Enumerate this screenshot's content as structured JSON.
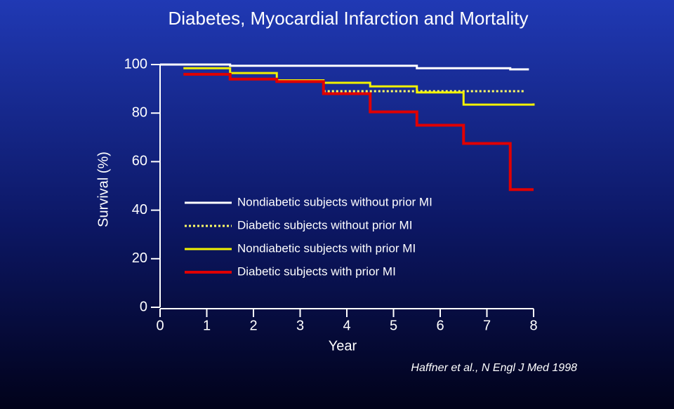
{
  "chart_data": {
    "type": "step",
    "title": "Diabetes, Myocardial Infarction and Mortality",
    "xlabel": "Year",
    "ylabel": "Survival (%)",
    "xlim": [
      0,
      8
    ],
    "ylim": [
      0,
      100
    ],
    "xticks": [
      0,
      1,
      2,
      3,
      4,
      5,
      6,
      7,
      8
    ],
    "yticks": [
      0,
      20,
      40,
      60,
      80,
      100
    ],
    "series": [
      {
        "name": "Nondiabetic subjects without prior MI",
        "color": "#ffffff",
        "style": "solid",
        "x": [
          0,
          1.5,
          5.5,
          7.5,
          7.9
        ],
        "values": [
          100,
          99.5,
          98.5,
          98,
          98
        ]
      },
      {
        "name": "Diabetic subjects without prior MI",
        "color": "#ffff66",
        "style": "dotted",
        "x": [
          3.5,
          7.8
        ],
        "values": [
          89,
          89
        ]
      },
      {
        "name": "Nondiabetic subjects with prior MI",
        "color": "#f2f200",
        "style": "solid",
        "x": [
          0.5,
          1.5,
          2.5,
          3.5,
          4.5,
          5.5,
          6.5,
          8
        ],
        "values": [
          98.5,
          96.5,
          93.5,
          92.5,
          91,
          88.5,
          83.5,
          84
        ]
      },
      {
        "name": "Diabetic subjects with prior MI",
        "color": "#e00000",
        "style": "solid",
        "x": [
          0.5,
          1.5,
          2.5,
          3.5,
          4.5,
          5.5,
          6.5,
          7.5,
          8
        ],
        "values": [
          96,
          94,
          93,
          88,
          80.5,
          75,
          67.5,
          48.5,
          48.5
        ]
      }
    ],
    "annotation": "Haffner et al., N Engl J Med 1998"
  }
}
